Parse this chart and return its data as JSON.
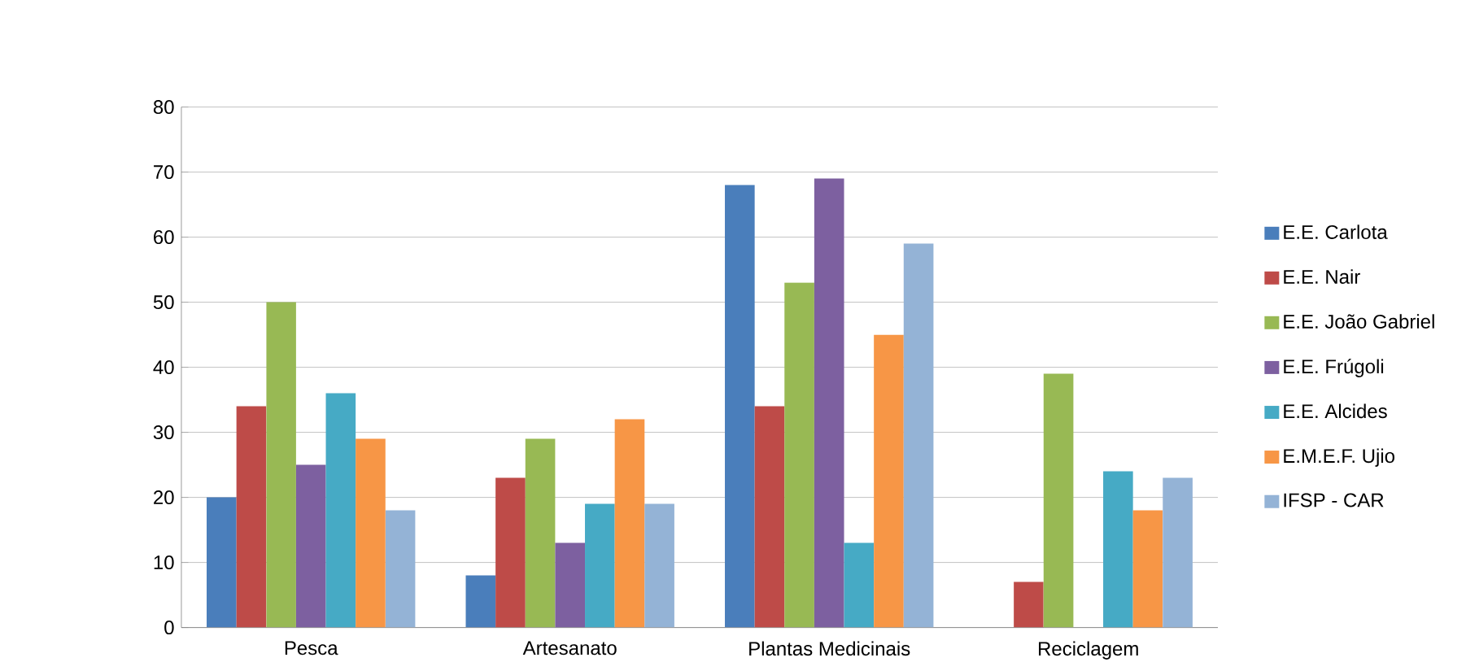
{
  "chart_data": {
    "type": "bar",
    "categories": [
      "Pesca",
      "Artesanato",
      "Plantas Medicinais",
      "Reciclagem"
    ],
    "series": [
      {
        "name": "E.E. Carlota",
        "color": "#4a7ebb",
        "values": [
          20,
          8,
          68,
          0
        ]
      },
      {
        "name": "E.E. Nair",
        "color": "#be4b48",
        "values": [
          34,
          23,
          34,
          7
        ]
      },
      {
        "name": "E.E. João Gabriel",
        "color": "#98b954",
        "values": [
          50,
          29,
          53,
          39
        ]
      },
      {
        "name": "E.E. Frúgoli",
        "color": "#7d60a0",
        "values": [
          25,
          13,
          69,
          0
        ]
      },
      {
        "name": "E.E. Alcides",
        "color": "#46aac5",
        "values": [
          36,
          19,
          13,
          24
        ]
      },
      {
        "name": "E.M.E.F. Ujio",
        "color": "#f79646",
        "values": [
          29,
          32,
          45,
          18
        ]
      },
      {
        "name": "IFSP - CAR",
        "color": "#94b3d6",
        "values": [
          18,
          19,
          59,
          23
        ]
      }
    ],
    "ylim": [
      0,
      80
    ],
    "yticks": [
      0,
      10,
      20,
      30,
      40,
      50,
      60,
      70,
      80
    ],
    "grid": "y",
    "legend": "right"
  }
}
